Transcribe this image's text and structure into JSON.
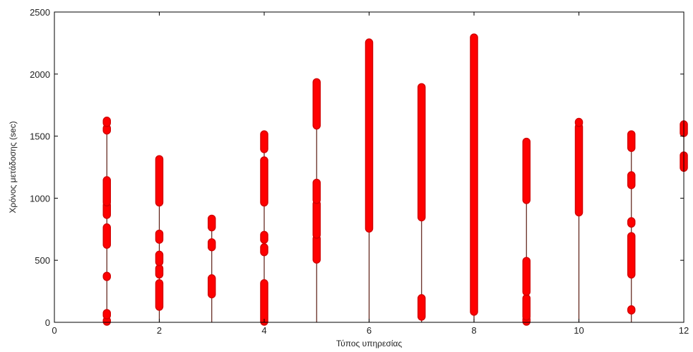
{
  "chart_data": {
    "type": "scatter",
    "title": "",
    "xlabel": "Τύπος υπηρεσίας",
    "ylabel": "Χρόνος μετάδοσης (sec)",
    "xlim": [
      0,
      12
    ],
    "ylim": [
      0,
      2500
    ],
    "xticks": [
      0,
      2,
      4,
      6,
      8,
      10,
      12
    ],
    "yticks": [
      0,
      500,
      1000,
      1500,
      2000,
      2500
    ],
    "grid": false,
    "legend": "none",
    "colors": {
      "stem": "#5a1a10",
      "marker_edge": "#d40000",
      "marker_fill": "#ff0000",
      "axis": "#000000"
    },
    "series": [
      {
        "x": 1,
        "stem": [
          0,
          1620
        ],
        "segments": [
          [
            0,
            20
          ],
          [
            50,
            80
          ],
          [
            360,
            380
          ],
          [
            620,
            770
          ],
          [
            860,
            950
          ],
          [
            960,
            1150
          ],
          [
            1540,
            1570
          ],
          [
            1600,
            1630
          ]
        ]
      },
      {
        "x": 2,
        "stem": [
          0,
          1320
        ],
        "segments": [
          [
            120,
            320
          ],
          [
            380,
            440
          ],
          [
            480,
            550
          ],
          [
            660,
            720
          ],
          [
            960,
            1320
          ]
        ]
      },
      {
        "x": 3,
        "stem": [
          0,
          840
        ],
        "segments": [
          [
            220,
            360
          ],
          [
            600,
            650
          ],
          [
            760,
            840
          ]
        ]
      },
      {
        "x": 4,
        "stem": [
          0,
          1520
        ],
        "segments": [
          [
            0,
            320
          ],
          [
            560,
            610
          ],
          [
            660,
            710
          ],
          [
            960,
            1310
          ],
          [
            1390,
            1520
          ]
        ]
      },
      {
        "x": 5,
        "stem": [
          0,
          1940
        ],
        "segments": [
          [
            500,
            680
          ],
          [
            700,
            960
          ],
          [
            980,
            1130
          ],
          [
            1580,
            1940
          ]
        ]
      },
      {
        "x": 6,
        "stem": [
          0,
          2260
        ],
        "segments": [
          [
            750,
            2260
          ]
        ]
      },
      {
        "x": 7,
        "stem": [
          0,
          1900
        ],
        "segments": [
          [
            40,
            200
          ],
          [
            840,
            1900
          ]
        ]
      },
      {
        "x": 8,
        "stem": [
          0,
          2300
        ],
        "segments": [
          [
            80,
            2300
          ]
        ]
      },
      {
        "x": 9,
        "stem": [
          0,
          1460
        ],
        "segments": [
          [
            0,
            30
          ],
          [
            40,
            200
          ],
          [
            240,
            500
          ],
          [
            980,
            1460
          ]
        ]
      },
      {
        "x": 10,
        "stem": [
          0,
          1620
        ],
        "segments": [
          [
            880,
            1580
          ],
          [
            1600,
            1620
          ]
        ]
      },
      {
        "x": 11,
        "stem": [
          0,
          1520
        ],
        "segments": [
          [
            90,
            110
          ],
          [
            380,
            700
          ],
          [
            790,
            820
          ],
          [
            1100,
            1190
          ],
          [
            1400,
            1520
          ]
        ]
      },
      {
        "x": 12,
        "stem": [
          1240,
          1600
        ],
        "segments": [
          [
            1240,
            1350
          ],
          [
            1520,
            1600
          ]
        ]
      }
    ]
  }
}
